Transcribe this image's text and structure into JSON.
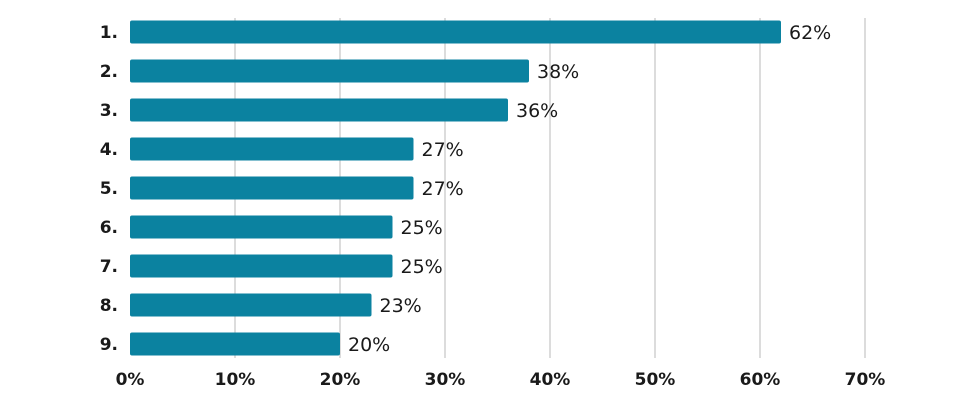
{
  "chart_data": {
    "type": "bar",
    "orientation": "horizontal",
    "categories": [
      "1.",
      "2.",
      "3.",
      "4.",
      "5.",
      "6.",
      "7.",
      "8.",
      "9."
    ],
    "values": [
      62,
      38,
      36,
      27,
      27,
      25,
      25,
      23,
      20
    ],
    "value_labels": [
      "62%",
      "38%",
      "36%",
      "27%",
      "27%",
      "25%",
      "25%",
      "23%",
      "20%"
    ],
    "title": "",
    "xlabel": "",
    "ylabel": "",
    "xlim": [
      0,
      70
    ],
    "x_ticks": [
      0,
      10,
      20,
      30,
      40,
      50,
      60,
      70
    ],
    "x_tick_labels": [
      "0%",
      "10%",
      "20%",
      "30%",
      "40%",
      "50%",
      "60%",
      "70%"
    ],
    "grid": "vertical",
    "legend": "none",
    "bar_color": "#0b82a0"
  }
}
